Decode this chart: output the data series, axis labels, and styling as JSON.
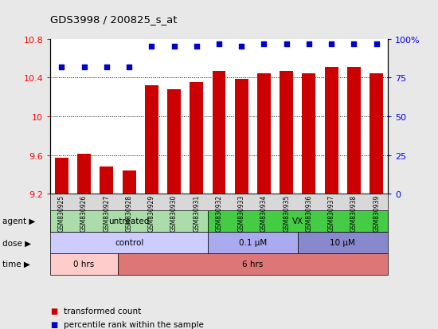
{
  "title": "GDS3998 / 200825_s_at",
  "samples": [
    "GSM830925",
    "GSM830926",
    "GSM830927",
    "GSM830928",
    "GSM830929",
    "GSM830930",
    "GSM830931",
    "GSM830932",
    "GSM830933",
    "GSM830934",
    "GSM830935",
    "GSM830936",
    "GSM830937",
    "GSM830938",
    "GSM830939"
  ],
  "bar_values": [
    9.57,
    9.61,
    9.48,
    9.44,
    10.32,
    10.28,
    10.35,
    10.47,
    10.39,
    10.44,
    10.47,
    10.44,
    10.51,
    10.51,
    10.44
  ],
  "percentile_values": [
    82,
    82,
    82,
    82,
    95,
    95,
    95,
    97,
    95,
    97,
    97,
    97,
    97,
    97,
    97
  ],
  "bar_color": "#cc0000",
  "percentile_color": "#0000cc",
  "ylim_left": [
    9.2,
    10.8
  ],
  "ylim_right": [
    0,
    100
  ],
  "yticks_left": [
    9.2,
    9.6,
    10.0,
    10.4,
    10.8
  ],
  "ytick_labels_left": [
    "9.2",
    "9.6",
    "10",
    "10.4",
    "10.8"
  ],
  "yticks_right": [
    0,
    25,
    50,
    75,
    100
  ],
  "ytick_labels_right": [
    "0",
    "25",
    "50",
    "75",
    "100%"
  ],
  "grid_values": [
    9.6,
    10.0,
    10.4
  ],
  "fig_bg_color": "#e8e8e8",
  "plot_bg_color": "#ffffff",
  "xticklabel_bg": "#d8d8d8",
  "agent_groups": [
    {
      "label": "untreated",
      "start": 0,
      "end": 7,
      "color": "#aaddaa"
    },
    {
      "label": "VX",
      "start": 7,
      "end": 15,
      "color": "#44cc44"
    }
  ],
  "dose_groups": [
    {
      "label": "control",
      "start": 0,
      "end": 7,
      "color": "#ccccff"
    },
    {
      "label": "0.1 μM",
      "start": 7,
      "end": 11,
      "color": "#aaaaee"
    },
    {
      "label": "10 μM",
      "start": 11,
      "end": 15,
      "color": "#8888cc"
    }
  ],
  "time_groups": [
    {
      "label": "0 hrs",
      "start": 0,
      "end": 3,
      "color": "#ffcccc"
    },
    {
      "label": "6 hrs",
      "start": 3,
      "end": 15,
      "color": "#dd7777"
    }
  ],
  "row_labels": [
    "agent",
    "dose",
    "time"
  ],
  "legend_items": [
    {
      "label": "transformed count",
      "color": "#cc0000"
    },
    {
      "label": "percentile rank within the sample",
      "color": "#0000cc"
    }
  ]
}
